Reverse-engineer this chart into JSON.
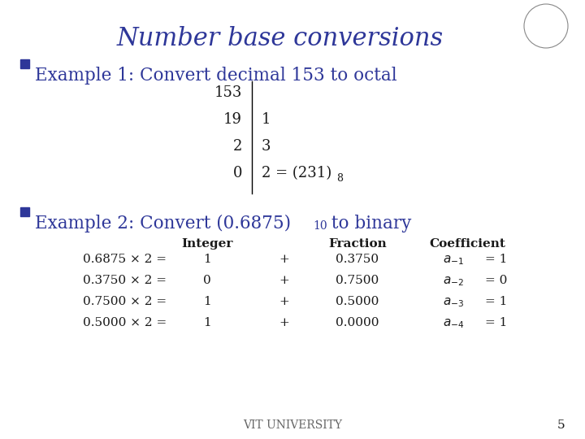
{
  "title": "Number base conversions",
  "title_color": "#2E3799",
  "bg_color": "#FFFFFF",
  "text_color": "#1a1a1a",
  "label_color": "#2E3799",
  "octal_left": [
    "153",
    "19",
    "2",
    "0"
  ],
  "octal_right": [
    "",
    "1",
    "3",
    "2 = (231)"
  ],
  "footer": "VIT UNIVERSITY",
  "page_num": "5"
}
